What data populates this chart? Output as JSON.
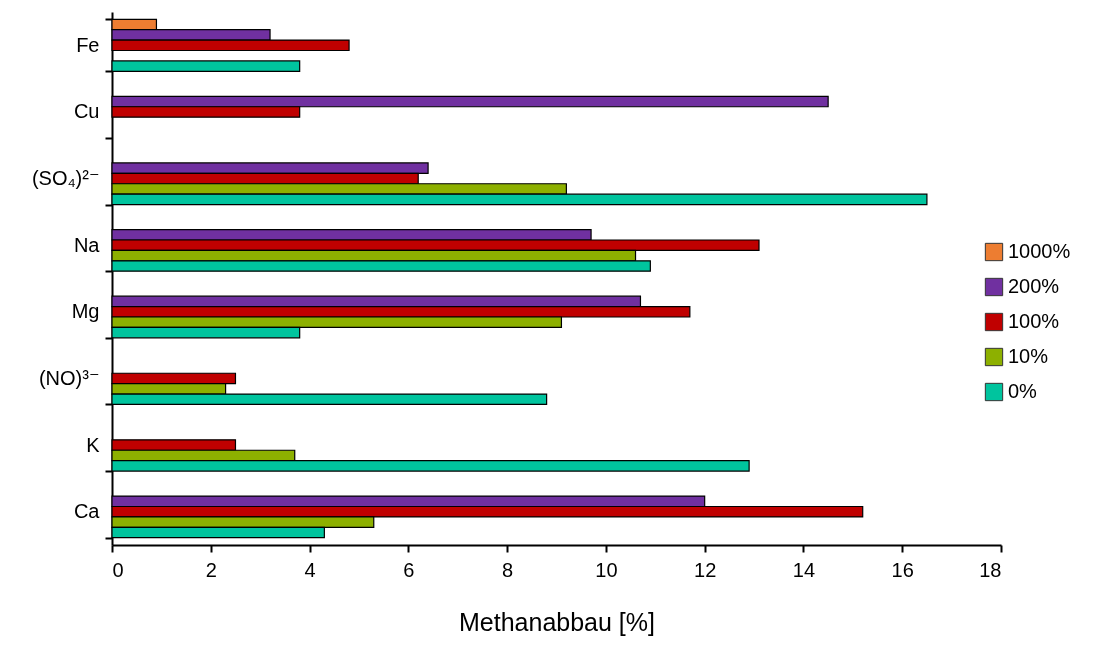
{
  "chart_data": {
    "type": "bar",
    "orientation": "horizontal",
    "xlabel": "Methanabbau [%]",
    "categories": [
      "Fe",
      "Cu",
      "(SO₄)²⁻",
      "Na",
      "Mg",
      "(NO)³⁻",
      "K",
      "Ca"
    ],
    "series": [
      {
        "name": "1000%",
        "color": "#ed7d31",
        "values": [
          0.9,
          null,
          null,
          null,
          null,
          null,
          null,
          null
        ]
      },
      {
        "name": "200%",
        "color": "#7030a0",
        "values": [
          3.2,
          14.5,
          6.4,
          9.7,
          10.7,
          null,
          null,
          12.0
        ]
      },
      {
        "name": "100%",
        "color": "#c00000",
        "values": [
          4.8,
          3.8,
          6.2,
          13.1,
          11.7,
          2.5,
          2.5,
          15.2
        ]
      },
      {
        "name": "10%",
        "color": "#8db000",
        "values": [
          null,
          null,
          9.2,
          10.6,
          9.1,
          2.3,
          3.7,
          5.3
        ]
      },
      {
        "name": "0%",
        "color": "#00c49e",
        "values": [
          3.8,
          null,
          16.5,
          10.9,
          3.8,
          8.8,
          12.9,
          4.3
        ]
      }
    ],
    "xlim": [
      0,
      18
    ],
    "xticks": [
      0,
      2,
      4,
      6,
      8,
      10,
      12,
      14,
      16,
      18
    ],
    "legend": "right",
    "grid": false
  }
}
